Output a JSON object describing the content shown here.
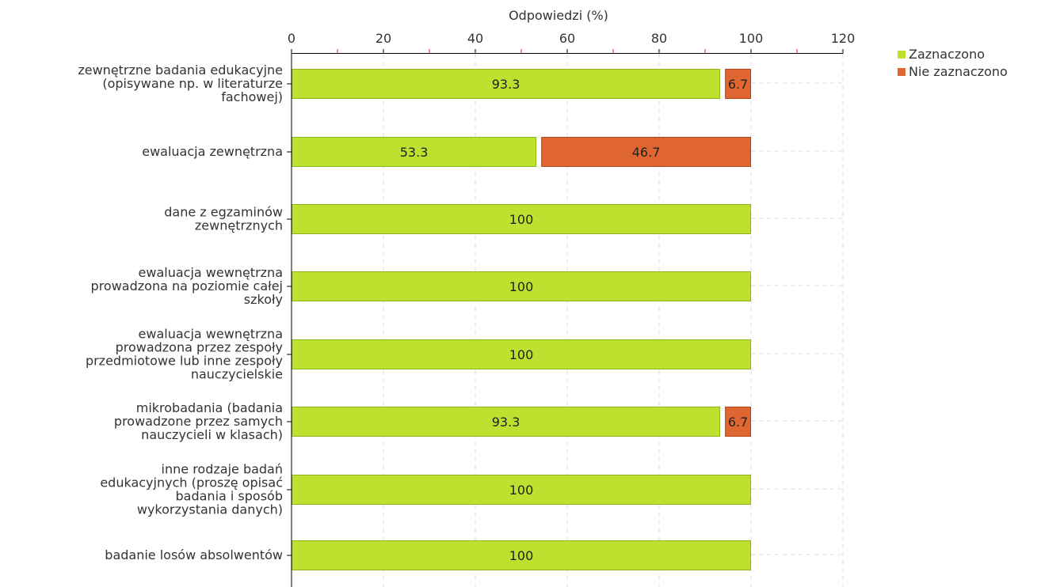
{
  "chart_data": {
    "type": "bar",
    "orientation": "horizontal",
    "stacked": true,
    "xlabel": "Odpowiedzi (%)",
    "xlim": [
      0,
      120
    ],
    "xticks": [
      0,
      20,
      40,
      60,
      80,
      100,
      120
    ],
    "grid": true,
    "legend_position": "top-right",
    "categories": [
      [
        "zewnętrzne badania edukacyjne",
        "(opisywane np. w literaturze",
        "fachowej)"
      ],
      [
        "ewaluacja zewnętrzna"
      ],
      [
        "dane z egzaminów",
        "zewnętrznych"
      ],
      [
        "ewaluacja wewnętrzna",
        "prowadzona na poziomie całej",
        "szkoły"
      ],
      [
        "ewaluacja wewnętrzna",
        "prowadzona przez zespoły",
        "przedmiotowe lub inne zespoły",
        "nauczycielskie"
      ],
      [
        "mikrobadania (badania",
        "prowadzone przez samych",
        "nauczycieli w klasach)"
      ],
      [
        "inne rodzaje badań",
        "edukacyjnych (proszę opisać",
        "badania i sposób",
        "wykorzystania danych)"
      ],
      [
        "badanie losów absolwentów"
      ]
    ],
    "series": [
      {
        "name": "Zaznaczono",
        "color": "#bde12e",
        "border": "#8fb31a",
        "values": [
          93.3,
          53.3,
          100,
          100,
          100,
          93.3,
          100,
          100
        ]
      },
      {
        "name": "Nie zaznaczono",
        "color": "#e06631",
        "border": "#b3441a",
        "values": [
          6.7,
          46.7,
          0,
          0,
          0,
          6.7,
          0,
          0
        ]
      }
    ]
  }
}
